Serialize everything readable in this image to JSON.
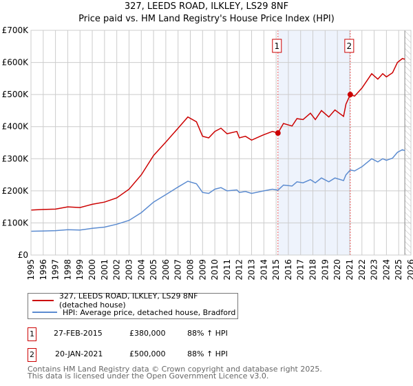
{
  "chart_data": {
    "type": "line",
    "title": "327, LEEDS ROAD, ILKLEY, LS29 8NF",
    "subtitle": "Price paid vs. HM Land Registry's House Price Index (HPI)",
    "xlim": [
      1995,
      2026
    ],
    "ylim": [
      0,
      700000
    ],
    "yticks": [
      {
        "v": 0,
        "label": "£0"
      },
      {
        "v": 100000,
        "label": "£100K"
      },
      {
        "v": 200000,
        "label": "£200K"
      },
      {
        "v": 300000,
        "label": "£300K"
      },
      {
        "v": 400000,
        "label": "£400K"
      },
      {
        "v": 500000,
        "label": "£500K"
      },
      {
        "v": 600000,
        "label": "£600K"
      },
      {
        "v": 700000,
        "label": "£700K"
      }
    ],
    "xticks": [
      1995,
      1996,
      1997,
      1998,
      1999,
      2000,
      2001,
      2002,
      2003,
      2004,
      2005,
      2006,
      2007,
      2008,
      2009,
      2010,
      2011,
      2012,
      2013,
      2014,
      2015,
      2016,
      2017,
      2018,
      2019,
      2020,
      2021,
      2022,
      2023,
      2024,
      2025,
      2026
    ],
    "grid": true,
    "shaded_range": [
      2015.15,
      2021.05
    ],
    "forecast_hatch_from": 2025.5,
    "series": [
      {
        "name": "327, LEEDS ROAD, ILKLEY, LS29 8NF (detached house)",
        "color": "#cc0000",
        "x": [
          1995,
          1996,
          1997,
          1998,
          1999,
          2000,
          2001,
          2002,
          2003,
          2004,
          2005,
          2006,
          2007,
          2007.8,
          2008.5,
          2009,
          2009.5,
          2010,
          2010.5,
          2011,
          2011.8,
          2012,
          2012.5,
          2013,
          2014,
          2014.7,
          2015.15,
          2015.6,
          2016.3,
          2016.7,
          2017.2,
          2017.8,
          2018.2,
          2018.7,
          2019.3,
          2019.8,
          2020.5,
          2020.7,
          2021.05,
          2021.4,
          2022,
          2022.8,
          2023.3,
          2023.7,
          2024,
          2024.5,
          2024.9,
          2025.3,
          2025.5
        ],
        "y": [
          140000,
          142000,
          143000,
          150000,
          148000,
          158000,
          165000,
          178000,
          205000,
          250000,
          310000,
          352000,
          395000,
          430000,
          415000,
          370000,
          365000,
          385000,
          395000,
          378000,
          385000,
          365000,
          370000,
          358000,
          375000,
          385000,
          380000,
          410000,
          402000,
          425000,
          422000,
          442000,
          422000,
          450000,
          430000,
          452000,
          432000,
          470000,
          500000,
          495000,
          520000,
          565000,
          548000,
          565000,
          555000,
          568000,
          600000,
          612000,
          610000
        ]
      },
      {
        "name": "HPI: Average price, detached house, Bradford",
        "color": "#5b8bd0",
        "x": [
          1995,
          1996,
          1997,
          1998,
          1999,
          2000,
          2001,
          2002,
          2003,
          2004,
          2005,
          2006,
          2007,
          2007.8,
          2008.5,
          2009,
          2009.5,
          2010,
          2010.5,
          2011,
          2011.8,
          2012,
          2012.5,
          2013,
          2014,
          2014.7,
          2015.15,
          2015.6,
          2016.3,
          2016.7,
          2017.2,
          2017.8,
          2018.2,
          2018.7,
          2019.3,
          2019.8,
          2020.5,
          2020.7,
          2021.05,
          2021.4,
          2022,
          2022.8,
          2023.3,
          2023.7,
          2024,
          2024.5,
          2024.9,
          2025.3,
          2025.5
        ],
        "y": [
          74000,
          75000,
          76000,
          79000,
          78000,
          83000,
          87000,
          96000,
          108000,
          132000,
          165000,
          188000,
          212000,
          230000,
          222000,
          195000,
          192000,
          205000,
          210000,
          200000,
          203000,
          195000,
          198000,
          192000,
          200000,
          205000,
          202000,
          218000,
          215000,
          228000,
          225000,
          235000,
          225000,
          240000,
          228000,
          240000,
          232000,
          250000,
          265000,
          262000,
          275000,
          300000,
          290000,
          300000,
          295000,
          302000,
          320000,
          328000,
          325000
        ]
      }
    ],
    "sales": [
      {
        "id": "1",
        "x": 2015.15,
        "y": 380000,
        "date": "27-FEB-2015",
        "price": "£380,000",
        "hpi": "88% ↑ HPI"
      },
      {
        "id": "2",
        "x": 2021.05,
        "y": 500000,
        "date": "20-JAN-2021",
        "price": "£500,000",
        "hpi": "88% ↑ HPI"
      }
    ],
    "legend_placement": "below"
  },
  "footer": {
    "line1": "Contains HM Land Registry data © Crown copyright and database right 2025.",
    "line2": "This data is licensed under the Open Government Licence v3.0."
  }
}
